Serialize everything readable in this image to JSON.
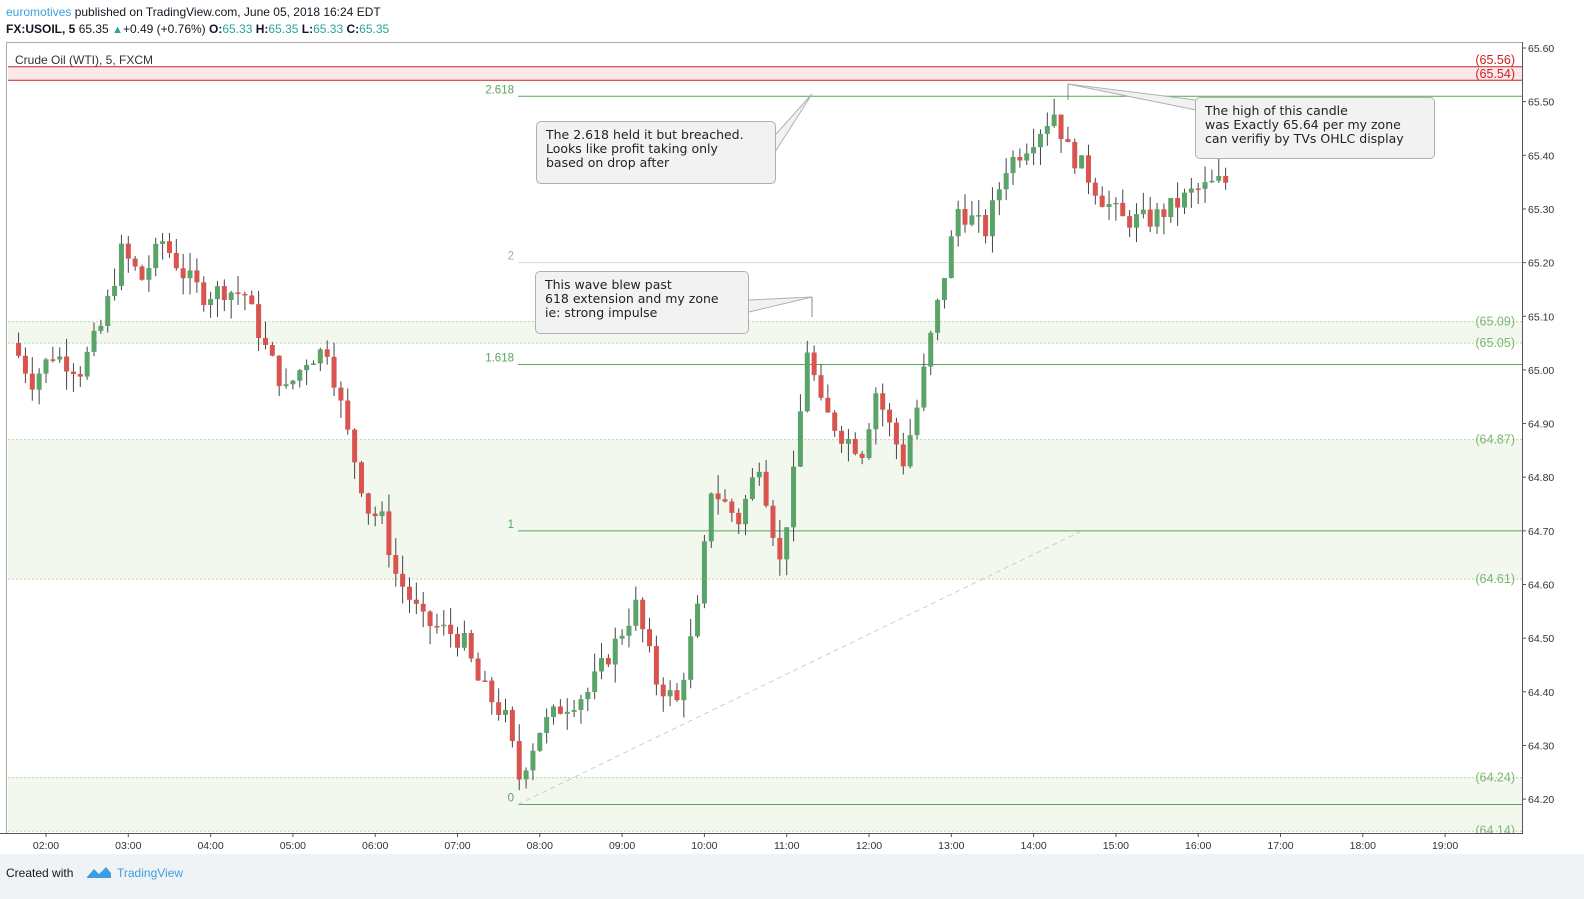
{
  "header": {
    "author": "euromotives",
    "published": " published on TradingView.com, June 05, 2018 16:24 EDT",
    "symbol": "FX:USOIL, 5",
    "last": "65.35",
    "change": "+0.49 (+0.76%)",
    "o_label": "O:",
    "o_value": "65.33",
    "h_label": "H:",
    "h_value": "65.35",
    "l_label": "L:",
    "l_value": "65.33",
    "c_label": "C:",
    "c_value": "65.35"
  },
  "legend": "Crude Oil (WTI), 5, FXCM",
  "footer": {
    "created_with": "Created with",
    "brand": "TradingView"
  },
  "colors": {
    "up": "#5aa469",
    "down": "#d9534f",
    "fib": "#5aa45c",
    "zone_red": "#cc2222"
  },
  "annotations": [
    {
      "id": "callout-2618",
      "lines": [
        "The 2.618 held it but breached.",
        "Looks like profit taking only",
        "based on drop after"
      ]
    },
    {
      "id": "callout-618",
      "lines": [
        "This wave blew past",
        "618 extension and my zone",
        "ie: strong impulse"
      ]
    },
    {
      "id": "callout-high",
      "lines": [
        "The high of this candle",
        "was Exactly 65.64 per my zone",
        "can verifiy by TVs OHLC display"
      ]
    }
  ],
  "chart_data": {
    "type": "candlestick",
    "title": "Crude Oil (WTI), 5, FXCM",
    "ylim": [
      64.12,
      65.61
    ],
    "y_ticks": [
      "65.60",
      "65.50",
      "65.40",
      "65.30",
      "65.20",
      "65.10",
      "65.00",
      "64.90",
      "64.80",
      "64.70",
      "64.60",
      "64.50",
      "64.40",
      "64.30",
      "64.20"
    ],
    "x_ticks": [
      "02:00",
      "03:00",
      "04:00",
      "05:00",
      "06:00",
      "07:00",
      "08:00",
      "09:00",
      "10:00",
      "11:00",
      "12:00",
      "13:00",
      "14:00",
      "15:00",
      "16:00",
      "17:00",
      "18:00",
      "19:00"
    ],
    "fib_levels": [
      {
        "label": "2.618",
        "price": 65.51
      },
      {
        "label": "2",
        "price": 65.2
      },
      {
        "label": "1.618",
        "price": 65.01
      },
      {
        "label": "1",
        "price": 64.7
      },
      {
        "label": "0",
        "price": 64.19
      }
    ],
    "zone_labels": [
      {
        "label": "(65.56)",
        "price": 65.565,
        "color": "red"
      },
      {
        "label": "(65.54)",
        "price": 65.54,
        "color": "red"
      },
      {
        "label": "(65.09)",
        "price": 65.09,
        "color": "green"
      },
      {
        "label": "(65.05)",
        "price": 65.05,
        "color": "green"
      },
      {
        "label": "(64.87)",
        "price": 64.87,
        "color": "green"
      },
      {
        "label": "(64.61)",
        "price": 64.61,
        "color": "green"
      },
      {
        "label": "(64.24)",
        "price": 64.24,
        "color": "green"
      },
      {
        "label": "(64.14)",
        "price": 64.14,
        "color": "green"
      }
    ],
    "path": [
      [
        "01:40",
        65.05
      ],
      [
        "01:55",
        64.98
      ],
      [
        "02:10",
        65.03
      ],
      [
        "02:30",
        65.0
      ],
      [
        "02:45",
        65.08
      ],
      [
        "03:00",
        65.22
      ],
      [
        "03:15",
        65.17
      ],
      [
        "03:30",
        65.24
      ],
      [
        "03:45",
        65.18
      ],
      [
        "04:00",
        65.14
      ],
      [
        "04:15",
        65.15
      ],
      [
        "04:30",
        65.14
      ],
      [
        "04:45",
        65.04
      ],
      [
        "05:00",
        64.96
      ],
      [
        "05:15",
        65.02
      ],
      [
        "05:30",
        65.04
      ],
      [
        "05:45",
        64.88
      ],
      [
        "06:00",
        64.74
      ],
      [
        "06:10",
        64.72
      ],
      [
        "06:20",
        64.62
      ],
      [
        "06:40",
        64.53
      ],
      [
        "07:00",
        64.51
      ],
      [
        "07:10",
        64.49
      ],
      [
        "07:20",
        64.42
      ],
      [
        "07:40",
        64.35
      ],
      [
        "07:50",
        64.24
      ],
      [
        "08:05",
        64.33
      ],
      [
        "08:20",
        64.37
      ],
      [
        "08:40",
        64.4
      ],
      [
        "09:00",
        64.49
      ],
      [
        "09:15",
        64.56
      ],
      [
        "09:30",
        64.42
      ],
      [
        "09:45",
        64.38
      ],
      [
        "10:00",
        64.55
      ],
      [
        "10:10",
        64.78
      ],
      [
        "10:30",
        64.72
      ],
      [
        "10:45",
        64.83
      ],
      [
        "11:00",
        64.64
      ],
      [
        "11:10",
        64.8
      ],
      [
        "11:20",
        65.04
      ],
      [
        "11:30",
        64.93
      ],
      [
        "11:45",
        64.88
      ],
      [
        "12:00",
        64.85
      ],
      [
        "12:10",
        64.96
      ],
      [
        "12:30",
        64.83
      ],
      [
        "12:40",
        64.93
      ],
      [
        "12:50",
        65.06
      ],
      [
        "13:00",
        65.18
      ],
      [
        "13:10",
        65.3
      ],
      [
        "13:30",
        65.26
      ],
      [
        "13:45",
        65.38
      ],
      [
        "14:00",
        65.42
      ],
      [
        "14:20",
        65.48
      ],
      [
        "14:30",
        65.41
      ],
      [
        "14:40",
        65.38
      ],
      [
        "14:55",
        65.32
      ],
      [
        "15:10",
        65.28
      ],
      [
        "15:30",
        65.28
      ],
      [
        "15:50",
        65.31
      ],
      [
        "16:00",
        65.33
      ],
      [
        "16:20",
        65.35
      ]
    ]
  }
}
